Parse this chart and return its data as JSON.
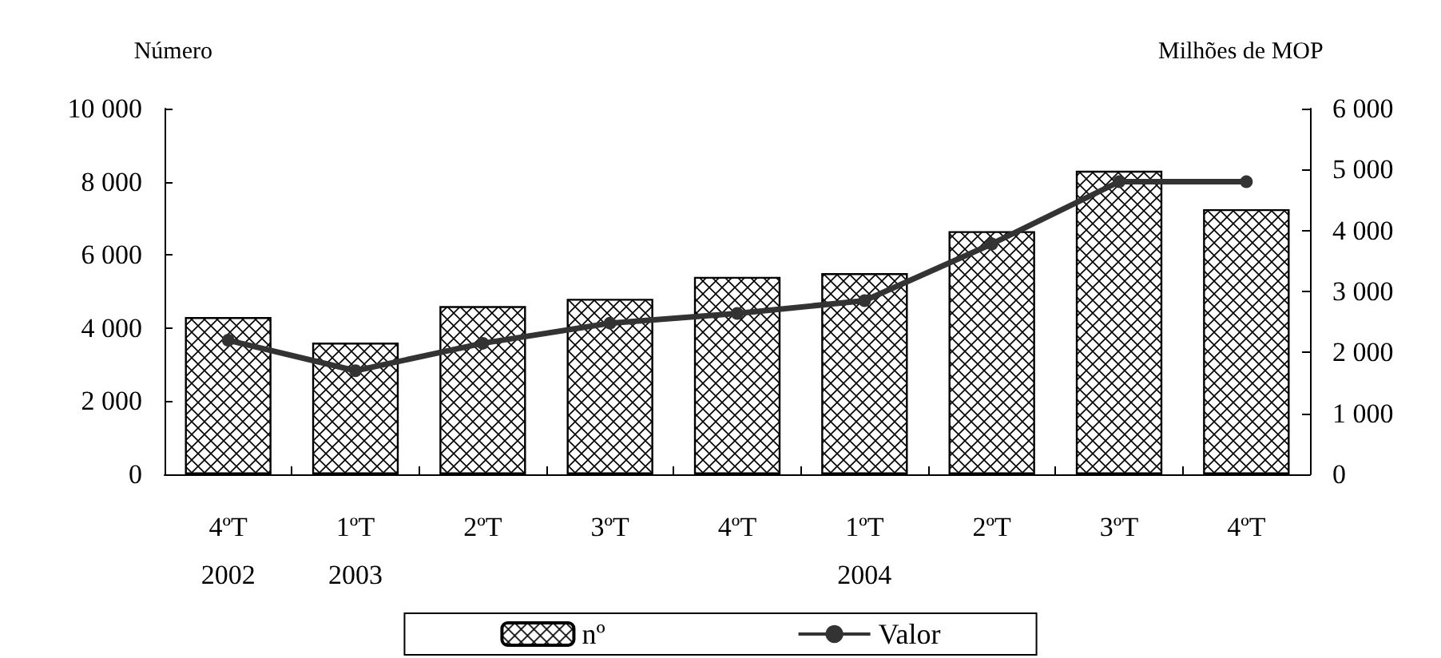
{
  "chart_data": {
    "type": "bar",
    "ylabel": "Número",
    "y2label": "Milhões de MOP",
    "categories": [
      "4ºT\n2002",
      "1ºT\n2003",
      "2ºT",
      "3ºT",
      "4ºT",
      "1ºT\n2004",
      "2ºT",
      "3ºT",
      "4ºT"
    ],
    "series": [
      {
        "name": "nº",
        "color": "#000000",
        "values": [
          4300,
          3600,
          4600,
          4800,
          5400,
          5500,
          6650,
          8300,
          7250
        ]
      },
      {
        "name": "Valor",
        "type": "line",
        "axis": "y2",
        "color": "#333333",
        "marker": "circle",
        "values": [
          2200,
          1700,
          2150,
          2480,
          2640,
          2850,
          3780,
          4800,
          4800
        ]
      }
    ],
    "ylim": [
      0,
      10000
    ],
    "yticks": [
      0,
      2000,
      4000,
      6000,
      8000,
      10000
    ],
    "y2lim": [
      0,
      6000
    ],
    "y2ticks": [
      0,
      1000,
      2000,
      3000,
      4000,
      5000,
      6000
    ],
    "legend": "bottom",
    "grid": false
  }
}
